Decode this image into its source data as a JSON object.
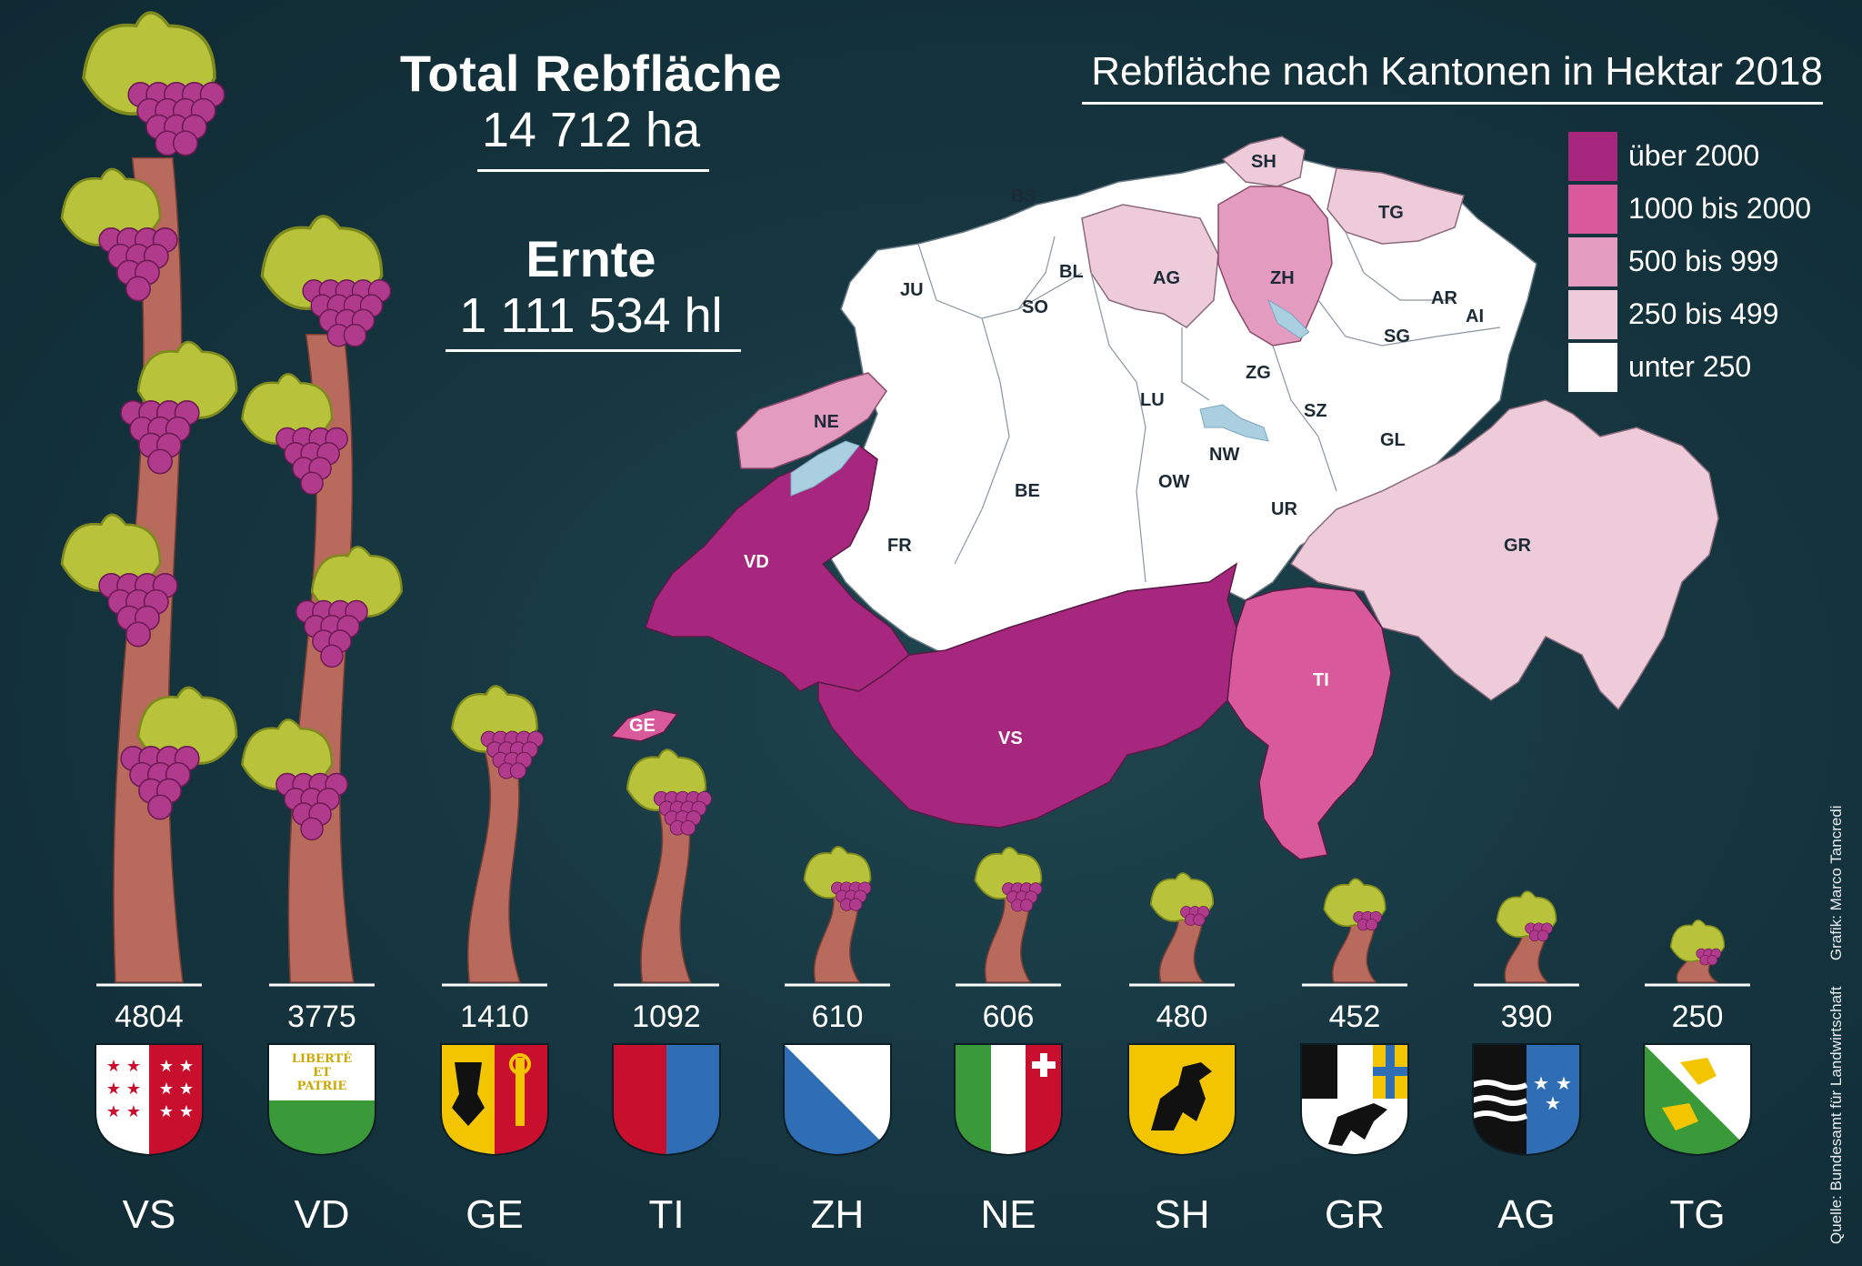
{
  "headline": {
    "total_title": "Total Rebfläche",
    "total_value": "14 712 ha",
    "harvest_title": "Ernte",
    "harvest_value": "1 111 534 hl"
  },
  "map": {
    "title": "Rebfläche nach Kantonen in Hektar 2018",
    "legend": [
      {
        "label": "über 2000",
        "color": "#a8277e"
      },
      {
        "label": "1000 bis 2000",
        "color": "#d95a9c"
      },
      {
        "label": "500 bis 999",
        "color": "#e49bc0"
      },
      {
        "label": "250 bis 499",
        "color": "#eecbd9"
      },
      {
        "label": "unter 250",
        "color": "#ffffff"
      }
    ],
    "canton_labels": [
      "BS",
      "SH",
      "TG",
      "JU",
      "BL",
      "AG",
      "ZH",
      "SO",
      "AR",
      "AI",
      "SG",
      "ZG",
      "NE",
      "LU",
      "SZ",
      "NW",
      "GL",
      "OW",
      "BE",
      "UR",
      "VD",
      "FR",
      "GR",
      "TI",
      "GE",
      "VS"
    ]
  },
  "chart_data": {
    "type": "bar",
    "categories": [
      "VS",
      "VD",
      "GE",
      "TI",
      "ZH",
      "NE",
      "SH",
      "GR",
      "AG",
      "TG"
    ],
    "values": [
      4804,
      3775,
      1410,
      1092,
      610,
      606,
      480,
      452,
      390,
      250
    ],
    "value_labels": [
      "4804",
      "3775",
      "1410",
      "1092",
      "610",
      "606",
      "480",
      "452",
      "390",
      "250"
    ],
    "title": "",
    "xlabel": "",
    "ylabel": "",
    "ylim": [
      0,
      4804
    ],
    "grid": false,
    "legend": "none"
  },
  "shields": {
    "vd_motto": [
      "LIBERTÉ",
      "ET",
      "PATRIE"
    ]
  },
  "credits": {
    "source": "Quelle: Bundesamt für Landwirtschaft",
    "graphic": "Grafik: Marco Tancredi"
  },
  "colors": {
    "background": "#163640",
    "trunk": "#b86a5c",
    "leaf": "#b8c23a",
    "grape": "#b03a8c"
  }
}
